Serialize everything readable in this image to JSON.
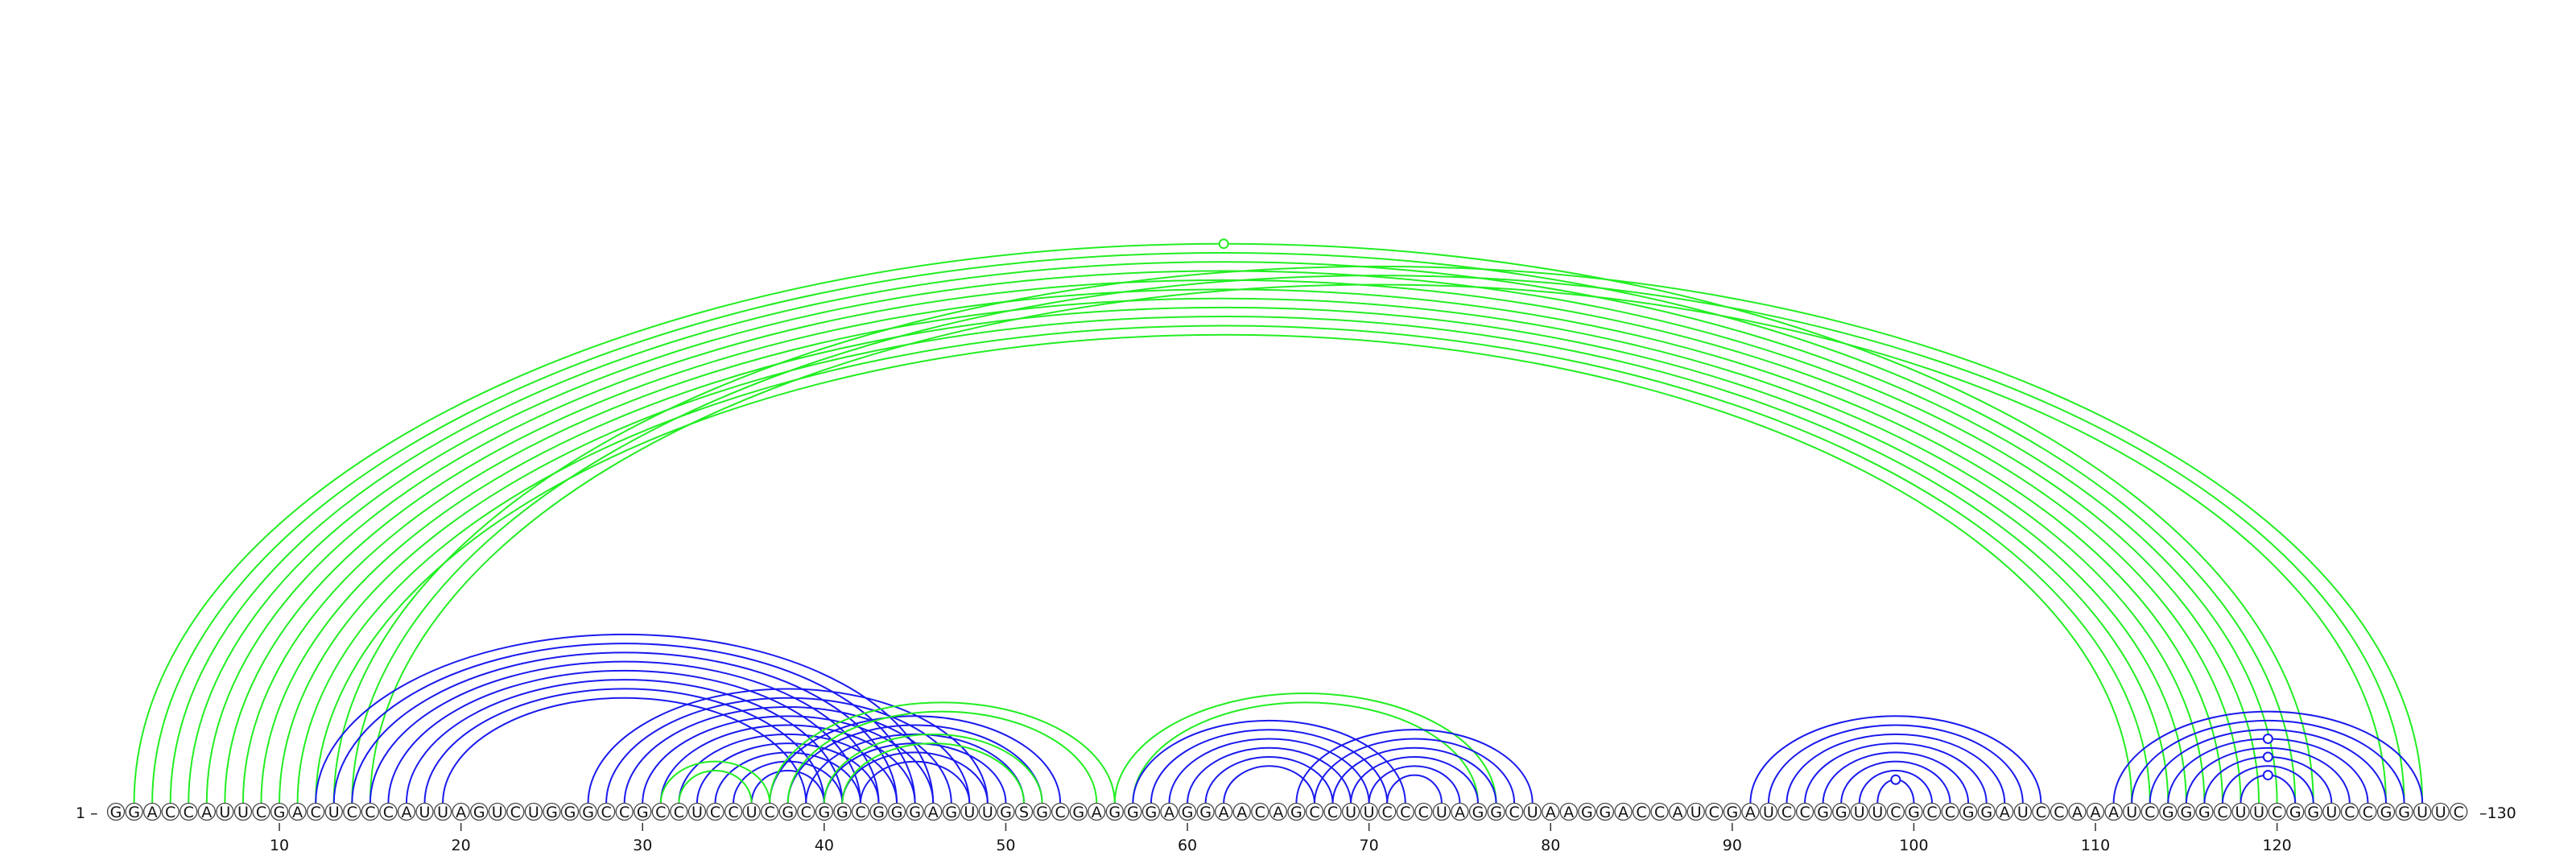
{
  "sequence": "GGACCAUUCGACUCCCAUUAGUCUGGGCCGCCUCCUCGCGGCGGGAGUUGSGCGAGGGAGGAACAGCCUUCCCUAGGCUAAGGACCAUCGAUCCGGUUCGCCGGAUCCAAAUCGGGCUUCGGUCCGGUUC",
  "start_label": "1 –",
  "end_label": "–130",
  "ticks": [
    10,
    20,
    30,
    40,
    50,
    60,
    70,
    80,
    90,
    100,
    110,
    120
  ],
  "colors": {
    "blue": "#1a1aee",
    "green": "#22ee22"
  },
  "arcs": [
    {
      "i": 2,
      "j": 122,
      "color": "green"
    },
    {
      "i": 3,
      "j": 121,
      "color": "green"
    },
    {
      "i": 4,
      "j": 120,
      "color": "green"
    },
    {
      "i": 5,
      "j": 119,
      "color": "green"
    },
    {
      "i": 6,
      "j": 118,
      "color": "green"
    },
    {
      "i": 7,
      "j": 117,
      "color": "green"
    },
    {
      "i": 8,
      "j": 116,
      "color": "green"
    },
    {
      "i": 9,
      "j": 115,
      "color": "green"
    },
    {
      "i": 10,
      "j": 114,
      "color": "green"
    },
    {
      "i": 11,
      "j": 113,
      "color": "green"
    },
    {
      "i": 12,
      "j": 112,
      "color": "green"
    },
    {
      "i": 13,
      "j": 128,
      "color": "green"
    },
    {
      "i": 14,
      "j": 127,
      "color": "green"
    },
    {
      "i": 15,
      "j": 126,
      "color": "green"
    },
    {
      "i": 12,
      "j": 46,
      "color": "blue"
    },
    {
      "i": 13,
      "j": 45,
      "color": "blue"
    },
    {
      "i": 14,
      "j": 44,
      "color": "blue"
    },
    {
      "i": 15,
      "j": 43,
      "color": "blue"
    },
    {
      "i": 16,
      "j": 42,
      "color": "blue"
    },
    {
      "i": 17,
      "j": 41,
      "color": "blue"
    },
    {
      "i": 18,
      "j": 40,
      "color": "blue"
    },
    {
      "i": 19,
      "j": 39,
      "color": "blue"
    },
    {
      "i": 27,
      "j": 49,
      "color": "blue"
    },
    {
      "i": 28,
      "j": 48,
      "color": "blue"
    },
    {
      "i": 29,
      "j": 47,
      "color": "blue"
    },
    {
      "i": 30,
      "j": 46,
      "color": "blue"
    },
    {
      "i": 31,
      "j": 45,
      "color": "blue"
    },
    {
      "i": 32,
      "j": 44,
      "color": "blue"
    },
    {
      "i": 33,
      "j": 43,
      "color": "blue"
    },
    {
      "i": 34,
      "j": 42,
      "color": "blue"
    },
    {
      "i": 35,
      "j": 41,
      "color": "blue"
    },
    {
      "i": 36,
      "j": 40,
      "color": "blue"
    },
    {
      "i": 37,
      "j": 53,
      "color": "blue"
    },
    {
      "i": 38,
      "j": 52,
      "color": "blue"
    },
    {
      "i": 39,
      "j": 51,
      "color": "blue"
    },
    {
      "i": 40,
      "j": 50,
      "color": "blue"
    },
    {
      "i": 41,
      "j": 49,
      "color": "blue"
    },
    {
      "i": 42,
      "j": 48,
      "color": "blue"
    },
    {
      "i": 31,
      "j": 37,
      "color": "green"
    },
    {
      "i": 32,
      "j": 36,
      "color": "green"
    },
    {
      "i": 37,
      "j": 56,
      "color": "green"
    },
    {
      "i": 38,
      "j": 55,
      "color": "green"
    },
    {
      "i": 40,
      "j": 52,
      "color": "green"
    },
    {
      "i": 41,
      "j": 51,
      "color": "green"
    },
    {
      "i": 56,
      "j": 77,
      "color": "green"
    },
    {
      "i": 57,
      "j": 76,
      "color": "green"
    },
    {
      "i": 57,
      "j": 72,
      "color": "blue"
    },
    {
      "i": 58,
      "j": 71,
      "color": "blue"
    },
    {
      "i": 59,
      "j": 70,
      "color": "blue"
    },
    {
      "i": 60,
      "j": 69,
      "color": "blue"
    },
    {
      "i": 61,
      "j": 68,
      "color": "blue"
    },
    {
      "i": 62,
      "j": 67,
      "color": "blue"
    },
    {
      "i": 66,
      "j": 79,
      "color": "blue"
    },
    {
      "i": 67,
      "j": 78,
      "color": "blue"
    },
    {
      "i": 68,
      "j": 77,
      "color": "blue"
    },
    {
      "i": 69,
      "j": 76,
      "color": "blue"
    },
    {
      "i": 70,
      "j": 75,
      "color": "blue"
    },
    {
      "i": 71,
      "j": 74,
      "color": "blue"
    },
    {
      "i": 91,
      "j": 107,
      "color": "blue"
    },
    {
      "i": 92,
      "j": 106,
      "color": "blue"
    },
    {
      "i": 93,
      "j": 105,
      "color": "blue"
    },
    {
      "i": 94,
      "j": 104,
      "color": "blue"
    },
    {
      "i": 95,
      "j": 103,
      "color": "blue"
    },
    {
      "i": 96,
      "j": 102,
      "color": "blue"
    },
    {
      "i": 97,
      "j": 101,
      "color": "blue"
    },
    {
      "i": 98,
      "j": 100,
      "color": "blue"
    },
    {
      "i": 111,
      "j": 128,
      "color": "blue"
    },
    {
      "i": 112,
      "j": 127,
      "color": "blue"
    },
    {
      "i": 113,
      "j": 126,
      "color": "blue"
    },
    {
      "i": 114,
      "j": 125,
      "color": "blue"
    },
    {
      "i": 115,
      "j": 124,
      "color": "blue"
    },
    {
      "i": 116,
      "j": 123,
      "color": "blue"
    },
    {
      "i": 117,
      "j": 122,
      "color": "blue"
    },
    {
      "i": 118,
      "j": 121,
      "color": "blue"
    }
  ]
}
